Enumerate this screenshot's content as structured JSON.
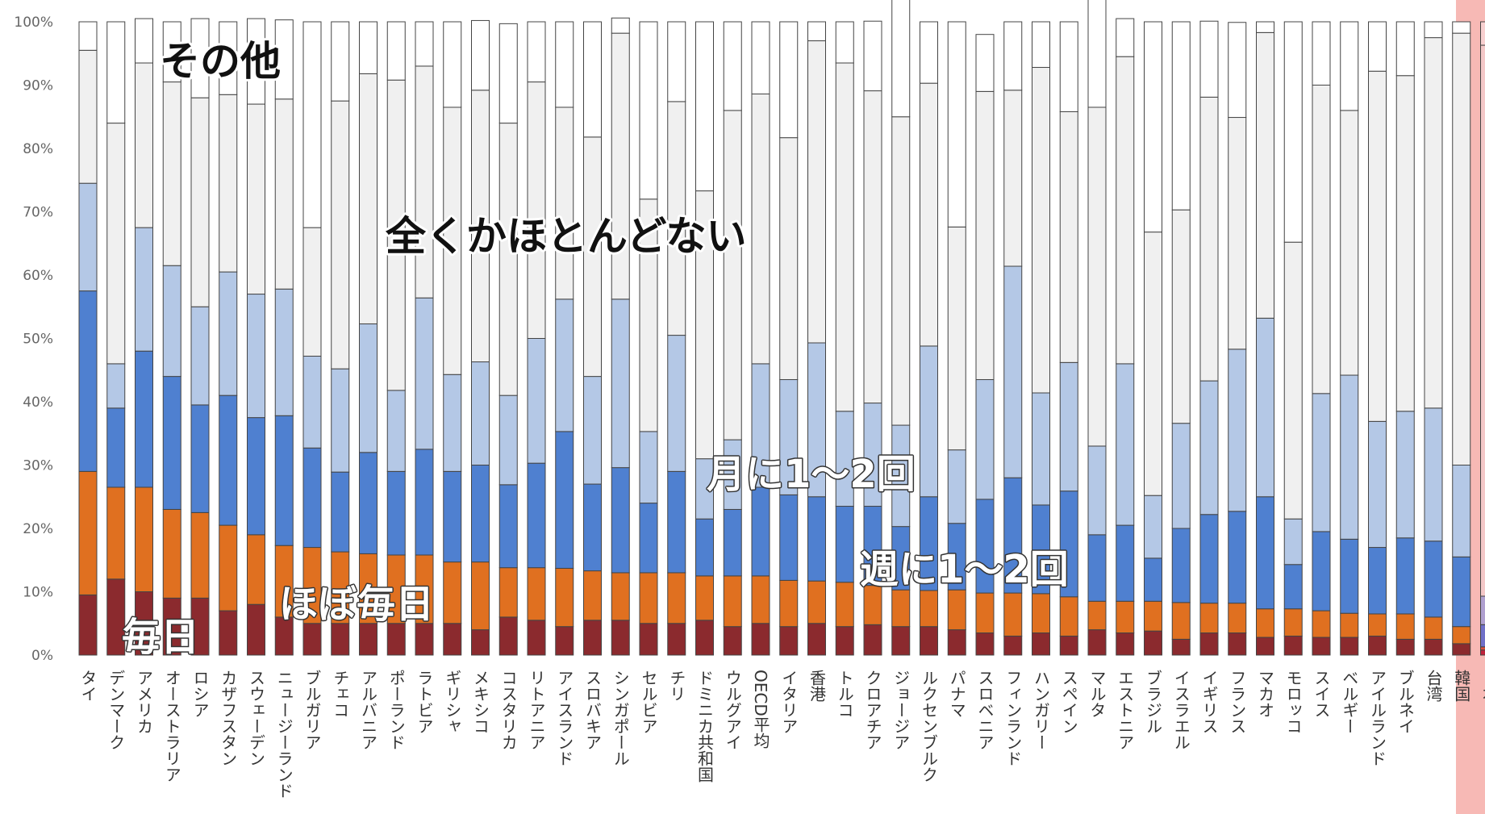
{
  "chart_data": {
    "type": "bar",
    "stacked": "percent",
    "y_ticks": [
      "0%",
      "10%",
      "20%",
      "30%",
      "40%",
      "50%",
      "60%",
      "70%",
      "80%",
      "90%",
      "100%"
    ],
    "ylim": [
      0,
      100
    ],
    "grid": false,
    "highlight_category": "日本",
    "categories": [
      "タイ",
      "デンマーク",
      "アメリカ",
      "オーストラリア",
      "ロシア",
      "カザフスタン",
      "スウェーデン",
      "ニュージーランド",
      "ブルガリア",
      "チェコ",
      "アルバニア",
      "ポーランド",
      "ラトビア",
      "ギリシャ",
      "メキシコ",
      "コスタリカ",
      "リトアニア",
      "アイスランド",
      "スロバキア",
      "シンガポール",
      "セルビア",
      "チリ",
      "ドミニカ共和国",
      "ウルグアイ",
      "OECD平均",
      "イタリア",
      "香港",
      "トルコ",
      "クロアチア",
      "ジョージア",
      "ルクセンブルク",
      "パナマ",
      "スロベニア",
      "フィンランド",
      "ハンガリー",
      "スペイン",
      "マルタ",
      "エストニア",
      "ブラジル",
      "イスラエル",
      "イギリス",
      "フランス",
      "マカオ",
      "モロッコ",
      "スイス",
      "ベルギー",
      "アイルランド",
      "ブルネイ",
      "台湾",
      "韓国",
      "日本"
    ],
    "series": [
      {
        "name": "毎日",
        "color": "#8b2a2e",
        "values": [
          9.5,
          12,
          10,
          9,
          9,
          7,
          8,
          6,
          5,
          5,
          5,
          5,
          5,
          5,
          4,
          6,
          5.5,
          4.5,
          5.5,
          5.5,
          5,
          5,
          5.5,
          4.5,
          5,
          4.5,
          5,
          4.5,
          4.8,
          4.5,
          4.5,
          4,
          3.5,
          3,
          3.5,
          3,
          4,
          3.5,
          3.8,
          2.5,
          3.5,
          3.5,
          2.8,
          3,
          2.8,
          2.8,
          3,
          2.5,
          2.5,
          1.8,
          0.8
        ]
      },
      {
        "name": "ほぼ毎日",
        "color": "#e07020",
        "values": [
          19.5,
          14.5,
          16.5,
          14,
          13.5,
          13.5,
          11,
          11.3,
          12,
          11.3,
          11,
          10.8,
          10.8,
          9.7,
          10.7,
          7.8,
          8.3,
          9.2,
          7.8,
          7.5,
          8,
          8,
          7,
          8,
          7.5,
          7.3,
          6.7,
          7,
          6.2,
          5.8,
          5.7,
          6.3,
          6.3,
          6.8,
          6.2,
          6.2,
          4.5,
          5,
          4.7,
          5.8,
          4.7,
          4.7,
          4.5,
          4.3,
          4.2,
          3.8,
          3.5,
          4,
          3.5,
          2.7,
          0.5
        ]
      },
      {
        "name": "週に1〜2回",
        "color": "#4f80d0",
        "values": [
          28.5,
          12.5,
          21.5,
          21,
          17,
          20.5,
          18.5,
          20.5,
          15.7,
          12.6,
          16,
          13.2,
          16.7,
          14.3,
          15.3,
          13.1,
          16.5,
          21.6,
          13.7,
          16.6,
          11,
          16,
          9,
          10.5,
          14,
          13.5,
          13.3,
          12,
          12.5,
          10,
          14.8,
          10.5,
          14.8,
          18.2,
          14,
          16.7,
          10.5,
          12,
          6.8,
          11.7,
          14,
          14.5,
          17.7,
          7,
          12.5,
          11.7,
          10.5,
          12,
          12,
          11,
          3.5
        ]
      },
      {
        "name": "月に1〜2回",
        "color": "#b4c8e6",
        "values": [
          17,
          7,
          19.5,
          17.5,
          15.5,
          19.5,
          19.5,
          20,
          14.5,
          16.3,
          20.3,
          12.8,
          23.9,
          15.3,
          16.3,
          14.1,
          19.7,
          20.9,
          17,
          26.6,
          11.3,
          21.5,
          9.5,
          11,
          19.5,
          18.2,
          24.3,
          15,
          16.3,
          16,
          23.8,
          11.6,
          18.9,
          33.4,
          17.7,
          20.3,
          14,
          25.5,
          9.9,
          16.6,
          21.1,
          25.6,
          28.2,
          7.2,
          21.8,
          25.9,
          19.9,
          20,
          21,
          14.5,
          4.5
        ]
      },
      {
        "name": "全くかほとんどない",
        "color": "#f0f0f0",
        "values": [
          21,
          38,
          26,
          29,
          33,
          28,
          30,
          30,
          20.3,
          42.3,
          39.5,
          49,
          36.6,
          42.2,
          42.9,
          43,
          40.5,
          30.3,
          37.8,
          42,
          36.7,
          36.9,
          42.3,
          52,
          42.6,
          38.2,
          47.7,
          55,
          49.3,
          48.7,
          41.5,
          35.2,
          45.5,
          27.8,
          51.4,
          39.6,
          53.5,
          48.5,
          41.6,
          33.7,
          44.8,
          36.6,
          45.1,
          43.7,
          48.7,
          41.8,
          55.3,
          53,
          58.5,
          68.2,
          87
        ]
      },
      {
        "name": "その他",
        "color": "#ffffff",
        "values": [
          4.5,
          16,
          7,
          9.5,
          12.5,
          11.5,
          13.5,
          12.5,
          32.5,
          12.5,
          8.2,
          9.2,
          7,
          13.5,
          11,
          15.7,
          9.5,
          13.5,
          18.2,
          2.4,
          28,
          12.6,
          26.7,
          14,
          11.4,
          18.3,
          3,
          6.5,
          11,
          31,
          9.7,
          32.4,
          9,
          10.8,
          7.2,
          14.2,
          17.5,
          6,
          33.2,
          29.7,
          12,
          15,
          1.7,
          34.8,
          10,
          14,
          7.8,
          8.5,
          2.5,
          1.8,
          3.7
        ]
      }
    ],
    "annotations": [
      "その他",
      "全くかほとんどない",
      "月に1〜2回",
      "週に1〜2回",
      "ほぼ毎日",
      "毎日"
    ]
  }
}
